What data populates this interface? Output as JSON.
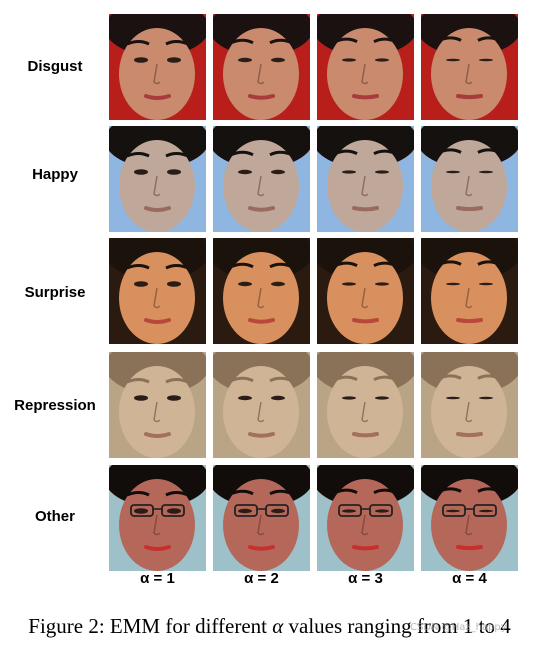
{
  "figure": {
    "rows": [
      {
        "label": "Disgust",
        "skin": "#c98a6e",
        "bg": "#b81f1a",
        "hair": "#1a1110",
        "lip": "#a83c3c"
      },
      {
        "label": "Happy",
        "skin": "#bfa89a",
        "bg": "#8fb6e0",
        "hair": "#15110f",
        "lip": "#9a6a5e"
      },
      {
        "label": "Surprise",
        "skin": "#d8905e",
        "bg": "#2a1a10",
        "hair": "#1c120c",
        "lip": "#b8473c"
      },
      {
        "label": "Repression",
        "skin": "#cfb596",
        "bg": "#b9a585",
        "hair": "#8a7258",
        "lip": "#a2705c"
      },
      {
        "label": "Other",
        "skin": "#b5685a",
        "bg": "#9ec0c8",
        "hair": "#120c0a",
        "lip": "#c8302e"
      }
    ],
    "columns": [
      "α = 1",
      "α = 2",
      "α = 3",
      "α = 4"
    ]
  },
  "caption": {
    "prefix": "Figure 2: EMM for different ",
    "symbol": "α",
    "suffix": " values ranging from 1 to 4"
  },
  "watermark": "CSDN @Haz_happy"
}
